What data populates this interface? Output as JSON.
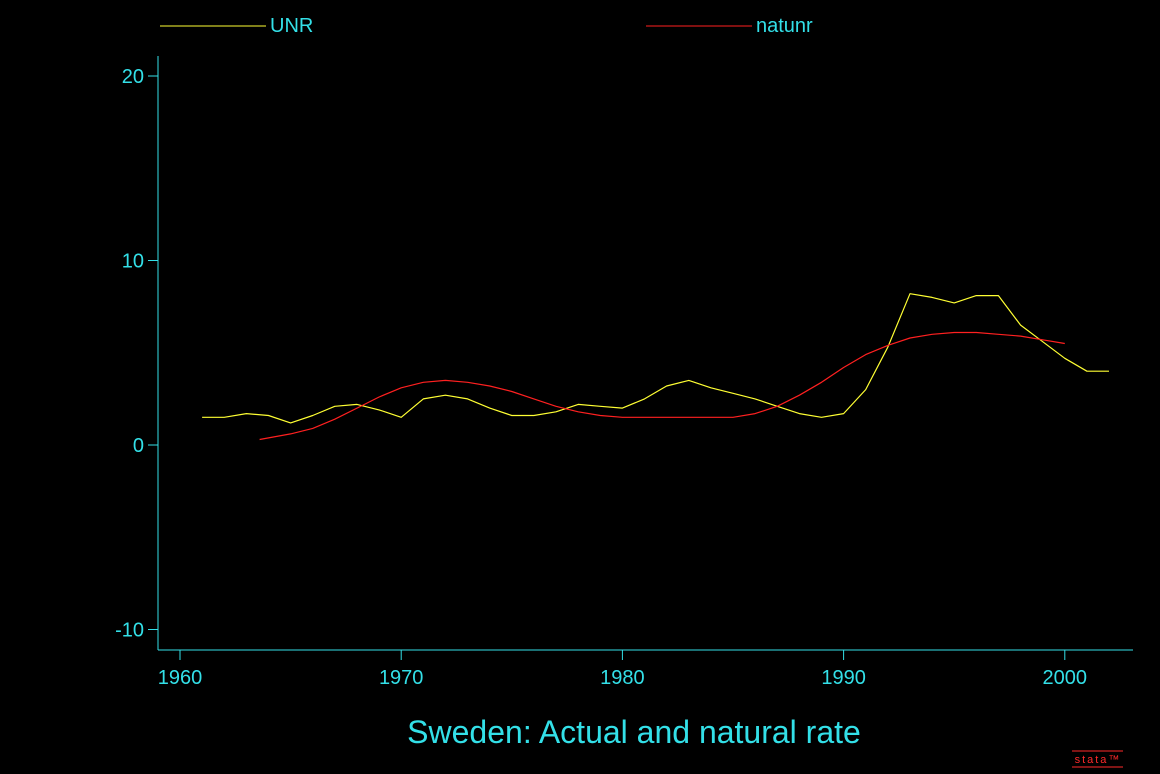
{
  "colors": {
    "background": "#000000",
    "axis": "#33e0e8",
    "text": "#33e0e8",
    "logo": "#ff2a2a"
  },
  "logo": {
    "text": "stata™"
  },
  "chart_data": {
    "type": "line",
    "title": "Sweden: Actual and natural rate",
    "xlabel": "",
    "ylabel": "",
    "xlim": [
      1960,
      2003
    ],
    "ylim": [
      -10,
      20
    ],
    "xticks": [
      1960,
      1970,
      1980,
      1990,
      2000
    ],
    "yticks": [
      -10,
      0,
      10,
      20
    ],
    "grid": false,
    "legend_position": "top",
    "series": [
      {
        "name": "UNR",
        "color": "#ffff33",
        "x": [
          1961,
          1962,
          1963,
          1964,
          1965,
          1966,
          1967,
          1968,
          1969,
          1970,
          1971,
          1972,
          1973,
          1974,
          1975,
          1976,
          1977,
          1978,
          1979,
          1980,
          1981,
          1982,
          1983,
          1984,
          1985,
          1986,
          1987,
          1988,
          1989,
          1990,
          1991,
          1992,
          1993,
          1994,
          1995,
          1996,
          1997,
          1998,
          1999,
          2000,
          2001,
          2002
        ],
        "y": [
          1.5,
          1.5,
          1.7,
          1.6,
          1.2,
          1.6,
          2.1,
          2.2,
          1.9,
          1.5,
          2.5,
          2.7,
          2.5,
          2.0,
          1.6,
          1.6,
          1.8,
          2.2,
          2.1,
          2.0,
          2.5,
          3.2,
          3.5,
          3.1,
          2.8,
          2.5,
          2.1,
          1.7,
          1.5,
          1.7,
          3.0,
          5.3,
          8.2,
          8.0,
          7.7,
          8.1,
          8.1,
          6.5,
          5.6,
          4.7,
          4.0,
          4.0
        ]
      },
      {
        "name": "natunr",
        "color": "#ff2020",
        "x": [
          1963.6,
          1965,
          1966,
          1967,
          1968,
          1969,
          1970,
          1971,
          1972,
          1973,
          1974,
          1975,
          1976,
          1977,
          1978,
          1979,
          1980,
          1981,
          1982,
          1983,
          1984,
          1985,
          1986,
          1987,
          1988,
          1989,
          1990,
          1991,
          1992,
          1993,
          1994,
          1995,
          1996,
          1997,
          1998,
          1999,
          2000
        ],
        "y": [
          0.3,
          0.6,
          0.9,
          1.4,
          2.0,
          2.6,
          3.1,
          3.4,
          3.5,
          3.4,
          3.2,
          2.9,
          2.5,
          2.1,
          1.8,
          1.6,
          1.5,
          1.5,
          1.5,
          1.5,
          1.5,
          1.5,
          1.7,
          2.1,
          2.7,
          3.4,
          4.2,
          4.9,
          5.4,
          5.8,
          6.0,
          6.1,
          6.1,
          6.0,
          5.9,
          5.7,
          5.5
        ]
      }
    ]
  }
}
